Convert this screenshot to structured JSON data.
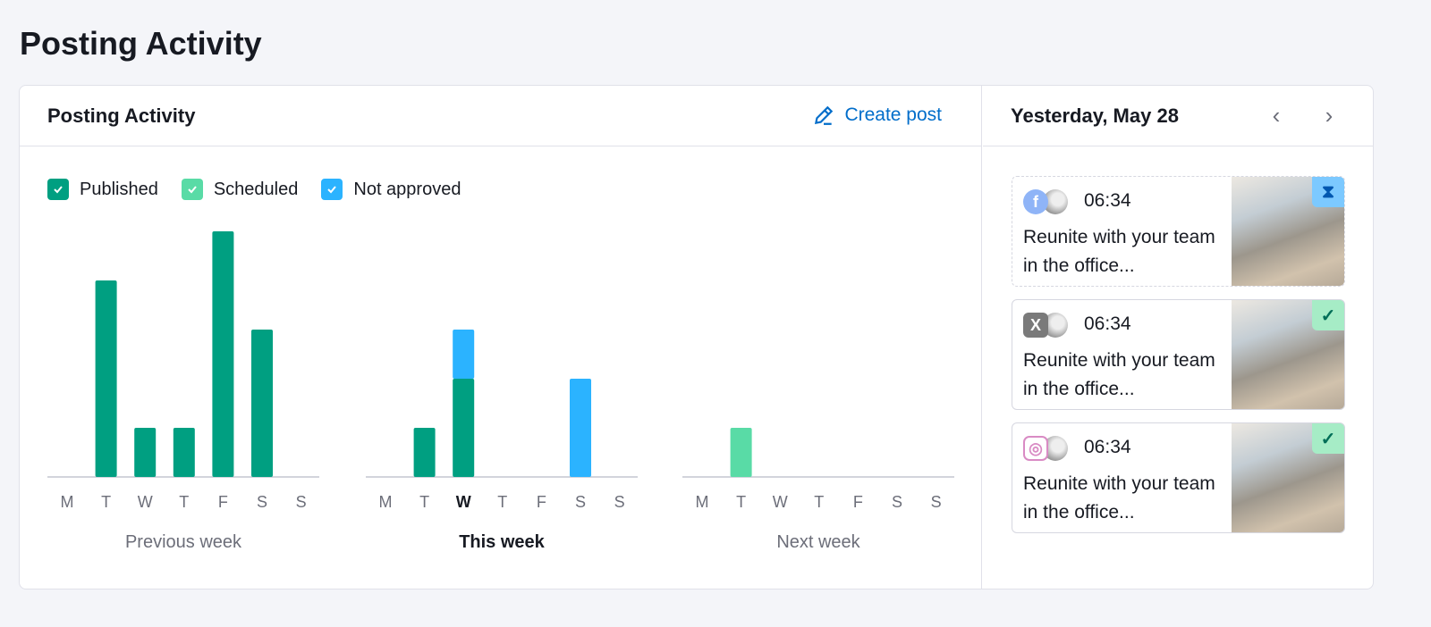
{
  "page": {
    "title": "Posting Activity"
  },
  "panel": {
    "title": "Posting Activity",
    "create_label": "Create post",
    "create_icon": "pencil-icon"
  },
  "legend": [
    {
      "label": "Published",
      "color": "#009f81"
    },
    {
      "label": "Scheduled",
      "color": "#59dba6"
    },
    {
      "label": "Not approved",
      "color": "#2bb3ff"
    }
  ],
  "chart_data": {
    "type": "bar",
    "stacked": true,
    "groups": [
      {
        "label": "Previous week",
        "bold": false,
        "days": [
          "M",
          "T",
          "W",
          "T",
          "F",
          "S",
          "S"
        ],
        "current_day": null,
        "series": {
          "Published": [
            0,
            4,
            1,
            1,
            5,
            3,
            0
          ],
          "Scheduled": [
            0,
            0,
            0,
            0,
            0,
            0,
            0
          ],
          "Not approved": [
            0,
            0,
            0,
            0,
            0,
            0,
            0
          ]
        }
      },
      {
        "label": "This week",
        "bold": true,
        "days": [
          "M",
          "T",
          "W",
          "T",
          "F",
          "S",
          "S"
        ],
        "current_day": 2,
        "series": {
          "Published": [
            0,
            1,
            2,
            0,
            0,
            0,
            0
          ],
          "Scheduled": [
            0,
            0,
            0,
            0,
            0,
            0,
            0
          ],
          "Not approved": [
            0,
            0,
            1,
            0,
            0,
            2,
            0
          ]
        }
      },
      {
        "label": "Next week",
        "bold": false,
        "days": [
          "M",
          "T",
          "W",
          "T",
          "F",
          "S",
          "S"
        ],
        "current_day": null,
        "series": {
          "Published": [
            0,
            0,
            0,
            0,
            0,
            0,
            0
          ],
          "Scheduled": [
            0,
            1,
            0,
            0,
            0,
            0,
            0
          ],
          "Not approved": [
            0,
            0,
            0,
            0,
            0,
            0,
            0
          ]
        }
      }
    ]
  },
  "day_panel": {
    "date": "Yesterday, May 28",
    "prev_icon": "chevron-left-icon",
    "next_icon": "chevron-right-icon"
  },
  "posts": [
    {
      "network": "facebook",
      "time": "06:34",
      "text": "Reunite with your team in the office...",
      "status": "not-approved",
      "status_icon": "hourglass-icon"
    },
    {
      "network": "x",
      "time": "06:34",
      "text": "Reunite with your team in the office...",
      "status": "published",
      "status_icon": "check-icon"
    },
    {
      "network": "instagram",
      "time": "06:34",
      "text": "Reunite with your team in the office...",
      "status": "published",
      "status_icon": "check-icon"
    }
  ]
}
